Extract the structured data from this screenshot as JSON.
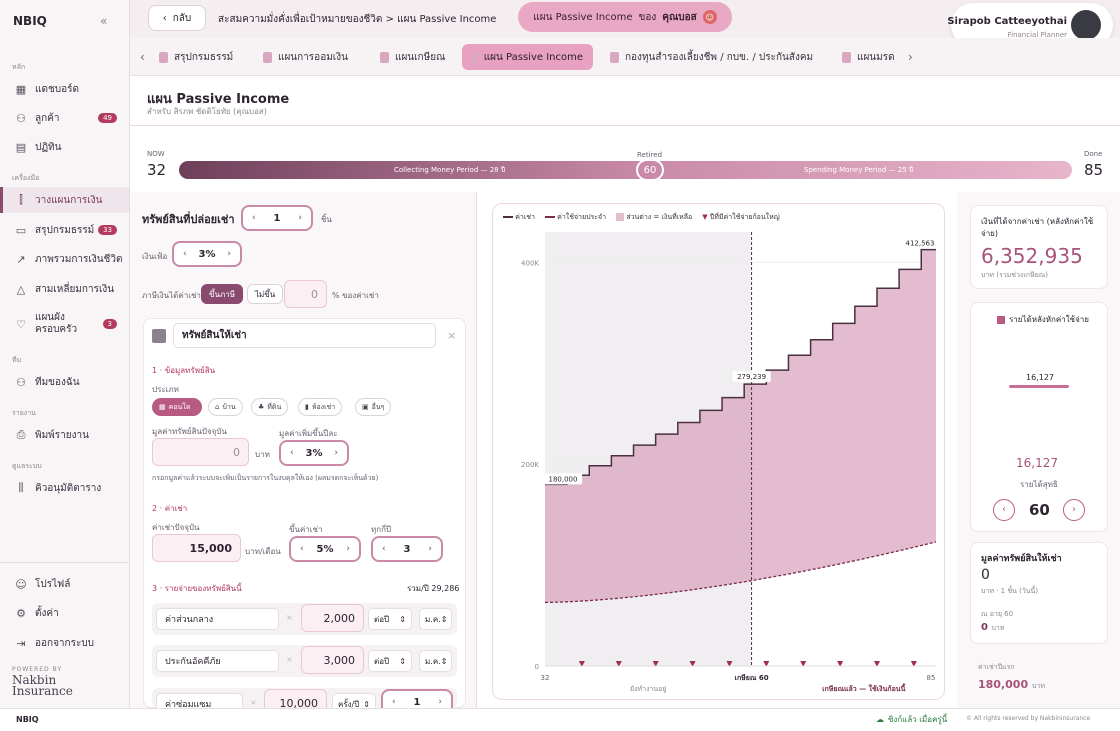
{
  "sidebar": {
    "logo": "NBIQ",
    "collapse": "«",
    "sections": {
      "main": "หลัก",
      "tools": "เครื่องมือ",
      "team": "ทีม",
      "report": "รายงาน",
      "system": "ดูแลระบบ"
    },
    "items": [
      {
        "label": "แดชบอร์ด",
        "icon": "dashboard-icon"
      },
      {
        "label": "ลูกค้า",
        "icon": "users-icon",
        "badge": "49"
      },
      {
        "label": "ปฏิทิน",
        "icon": "calendar-icon"
      },
      {
        "label": "วางแผนการเงิน",
        "icon": "chart-bars-icon"
      },
      {
        "label": "สรุปกรมธรรม์",
        "icon": "document-icon",
        "badge": "33"
      },
      {
        "label": "ภาพรวมการเงินชีวิต",
        "icon": "trend-icon"
      },
      {
        "label": "สามเหลี่ยมการเงิน",
        "icon": "triangle-icon"
      },
      {
        "label": "แผนผังครอบครัว",
        "icon": "heart-icon",
        "badge": "3"
      },
      {
        "label": "ทีมของฉัน",
        "icon": "team-icon"
      },
      {
        "label": "พิมพ์รายงาน",
        "icon": "printer-icon"
      },
      {
        "label": "คิวอนุมัติตาราง",
        "icon": "library-icon"
      },
      {
        "label": "โปรไฟล์",
        "icon": "profile-icon"
      },
      {
        "label": "ตั้งค่า",
        "icon": "gear-icon"
      },
      {
        "label": "ออกจากระบบ",
        "icon": "logout-icon"
      }
    ],
    "powered": "POWERED BY",
    "brand": "Nakbin Insurance"
  },
  "topbar": {
    "back": "กลับ",
    "breadcrumb": "สะสมความมั่งคั่งเพื่อเป้าหมายของชีวิต > แผน Passive Income",
    "pill_text": "แผน Passive Income",
    "pill_of": "ของ",
    "pill_client": "คุณบอส",
    "user_name": "Sirapob Catteeyothai",
    "user_role": "Financial Planner"
  },
  "tabs": [
    "สรุปกรมธรรม์",
    "แผนการออมเงิน",
    "แผนเกษียณ",
    "แผน Passive Income",
    "กองทุนสำรองเลี้ยงชีพ / กบข. / ประกันสังคม",
    "แผนมรด"
  ],
  "page": {
    "title": "แผน Passive Income",
    "subtitle": "สำหรับ สิรภพ ชัดติโยทัย (คุณบอส)"
  },
  "timeline": {
    "now_label": "NOW",
    "now": "32",
    "retired_label": "Retired",
    "retired": "60",
    "done_label": "Done",
    "done": "85",
    "collect": "Collecting Money Period — 28 ปี",
    "spend": "Spending Money Period — 25 ปี"
  },
  "left": {
    "assets_title": "ทรัพย์สินที่ปล่อยเช่า",
    "assets_count": "1",
    "assets_unit": "ชิ้น",
    "inflation_label": "เงินเฟ้อ",
    "inflation": "3%",
    "tax_label": "ภาษีเงินได้ค่าเช่า",
    "tax_on": "ขึ้นภาษี",
    "tax_off": "ไม่ขึ้น",
    "tax_value": "0",
    "tax_unit": "% ของค่าเช่า",
    "asset_name": "ทรัพย์สินให้เช่า",
    "s1": "1 · ข้อมูลทรัพย์สิน",
    "type_label": "ประเภท",
    "types": [
      "คอนโด",
      "บ้าน",
      "ที่ดิน",
      "ห้องเช่า",
      "อื่นๆ"
    ],
    "value_label": "มูลค่าทรัพย์สินปัจจุบัน",
    "value": "0",
    "value_unit": "บาท",
    "growth_label": "มูลค่าเพิ่มขึ้นปีละ",
    "growth": "3%",
    "note": "กรอกมูลค่าแล้วระบบจะเพิ่มเป็นรายการในงบดุลให้เอง (ผลมรดกจะเห็นด้วย)",
    "s2": "2 · ค่าเช่า",
    "rent_label": "ค่าเช่าปัจจุบัน",
    "rent": "15,000",
    "rent_unit": "บาท/เดือน",
    "rent_up_label": "ขึ้นค่าเช่า",
    "rent_up": "5%",
    "every_label": "ทุกกี่ปี",
    "every": "3",
    "s3": "3 · รายจ่ายของทรัพย์สินนี้",
    "total": "รวม/ปี 29,286",
    "expenses": [
      {
        "name": "ค่าส่วนกลาง",
        "amount": "2,000",
        "freq": "ต่อปี",
        "from": "ม.ค."
      },
      {
        "name": "ประกันอัคคีภัย",
        "amount": "3,000",
        "freq": "ต่อปี",
        "from": "ม.ค."
      },
      {
        "name": "ค่าซ่อมแซม",
        "amount": "10,000",
        "freq": "ครั้ง/ปี",
        "count": "1"
      }
    ]
  },
  "chart_legend": {
    "rent": "ค่าเช่า",
    "expense": "ค่าใช้จ่ายประจำ",
    "diff": "ส่วนต่าง = เงินที่เหลือ",
    "major": "ปีที่มีค่าใช้จ่ายก้อนใหญ่"
  },
  "chart_data": {
    "type": "area",
    "x_start": 32,
    "x_end": 85,
    "retire_at": 60,
    "y_ticks": [
      "0",
      "200K",
      "400K"
    ],
    "ylim": [
      0,
      430000
    ],
    "rent_series": [
      180000,
      180000,
      180000,
      189000,
      189000,
      189000,
      198450,
      198450,
      198450,
      208373,
      208373,
      208373,
      218791,
      218791,
      218791,
      229731,
      229731,
      229731,
      241217,
      241217,
      241217,
      253278,
      253278,
      253278,
      265942,
      265942,
      265942,
      279239,
      279239,
      279239,
      293201,
      293201,
      293201,
      307861,
      307861,
      307861,
      323254,
      323254,
      323254,
      339417,
      339417,
      339417,
      356388,
      356388,
      356388,
      374207,
      374207,
      374207,
      392917,
      392917,
      392917,
      412563,
      412563,
      412563
    ],
    "expense_start": 15000,
    "expense_end": 29286,
    "labels": {
      "start": "180,000",
      "mid": "279,239",
      "end": "412,563"
    },
    "major_years": [
      37,
      42,
      47,
      52,
      57,
      62,
      67,
      72,
      77,
      82
    ],
    "x_labels": {
      "start": "32",
      "retire": "เกษียณ 60",
      "end": "85",
      "left_note": "ยังทำงานอยู่",
      "right_note": "เกษียณแล้ว — ใช้เงินก้อนนี้"
    }
  },
  "right": {
    "income_title": "เงินที่ได้จากค่าเช่า (หลังหักค่าใช้จ่าย)",
    "income": "6,352,935",
    "income_note": "บาท (รวมช่วงเกษียณ)",
    "legend": "รายได้หลังหักค่าใช้จ่าย",
    "bar_value": "16,127",
    "net": "16,127",
    "net_label": "รายได้สุทธิ",
    "year": "60",
    "asset_title": "มูลค่าทรัพย์สินให้เช่า",
    "asset_value": "0",
    "asset_note": "บาท · 1 ชิ้น (วันนี้)",
    "age_label": "ณ อายุ 60",
    "age_value": "0",
    "age_unit": "บาท",
    "first_label": "ค่าเช่าปีแรก",
    "first_value": "180,000",
    "first_unit": "บาท"
  },
  "footer": {
    "logo": "NBIQ",
    "sync": "ซิงก์แล้ว เมื่อครู่นี้",
    "copy": "© All rights reserved by Nakbininsurance"
  },
  "colors": {
    "accent": "#8a4a6e",
    "pink": "#e8a1c0",
    "area": "#d9a7bf",
    "red": "#b33a5e"
  }
}
